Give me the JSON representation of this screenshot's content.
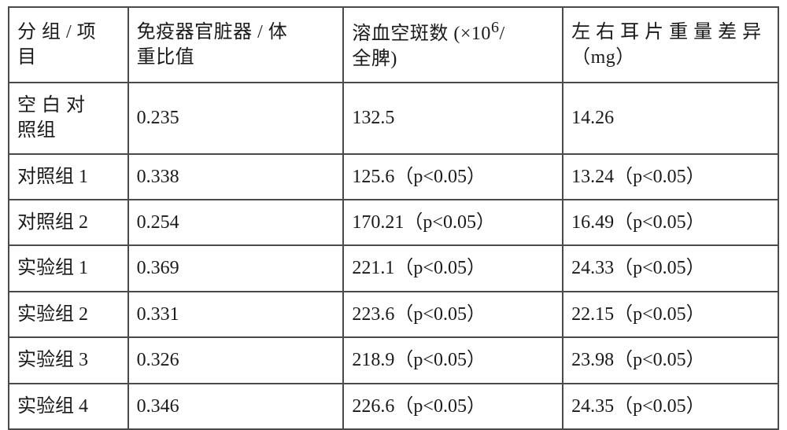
{
  "table": {
    "border_color": "#4a4a4a",
    "background_color": "#ffffff",
    "text_color": "#1a1a1a",
    "font_size_pt": 18,
    "columns": [
      {
        "key": "group",
        "header": "分组 / 项目",
        "width_pct": 15.5
      },
      {
        "key": "ratio",
        "header": "免疫器官脏器 / 体重比值",
        "width_pct": 28
      },
      {
        "key": "plaques",
        "header": "溶血空斑数 (×10⁶/全脾)",
        "width_pct": 28.5
      },
      {
        "key": "ear_diff",
        "header": "左右耳片重量差异（mg）",
        "width_pct": 28
      }
    ],
    "header_row": {
      "group_line1": "分 组 / 项",
      "group_line2": "目",
      "ratio_line1": "免疫器官脏器 / 体",
      "ratio_line2": "重比值",
      "plaques_line1": "溶血空斑数 (×10",
      "plaques_sup": "6",
      "plaques_line2": "全脾)",
      "ear_line1": "左 右 耳 片 重 量 差 异",
      "ear_line2": "（mg）"
    },
    "rows": [
      {
        "group_raw_line1": "空 白 对",
        "group_raw_line2": "照组",
        "group": "空白对照组",
        "ratio": "0.235",
        "plaques": "132.5",
        "ear_diff": "14.26"
      },
      {
        "group": "对照组 1",
        "ratio": "0.338",
        "plaques": "125.6（p<0.05）",
        "ear_diff": "13.24（p<0.05）"
      },
      {
        "group": "对照组 2",
        "ratio": "0.254",
        "plaques": "170.21（p<0.05）",
        "ear_diff": "16.49（p<0.05）"
      },
      {
        "group": "实验组 1",
        "ratio": "0.369",
        "plaques": "221.1（p<0.05）",
        "ear_diff": "24.33（p<0.05）"
      },
      {
        "group": "实验组 2",
        "ratio": "0.331",
        "plaques": "223.6（p<0.05）",
        "ear_diff": "22.15（p<0.05）"
      },
      {
        "group": "实验组 3",
        "ratio": "0.326",
        "plaques": "218.9（p<0.05）",
        "ear_diff": "23.98（p<0.05）"
      },
      {
        "group": "实验组 4",
        "ratio": "0.346",
        "plaques": "226.6（p<0.05）",
        "ear_diff": "24.35（p<0.05）"
      }
    ]
  }
}
